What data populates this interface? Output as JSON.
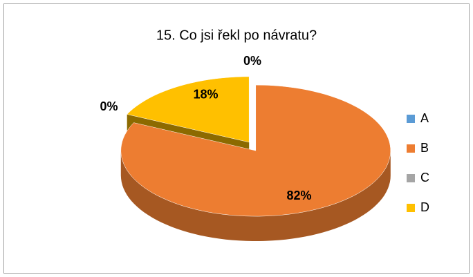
{
  "chart_data": {
    "type": "pie",
    "title": "15. Co jsi řekl po návratu?",
    "categories": [
      "A",
      "B",
      "C",
      "D"
    ],
    "values": [
      0,
      82,
      0,
      18
    ],
    "value_labels": [
      "0%",
      "82%",
      "0%",
      "18%"
    ],
    "colors": [
      "#5b9bd5",
      "#ed7d31",
      "#a5a5a5",
      "#ffc000"
    ],
    "legend": "right"
  }
}
